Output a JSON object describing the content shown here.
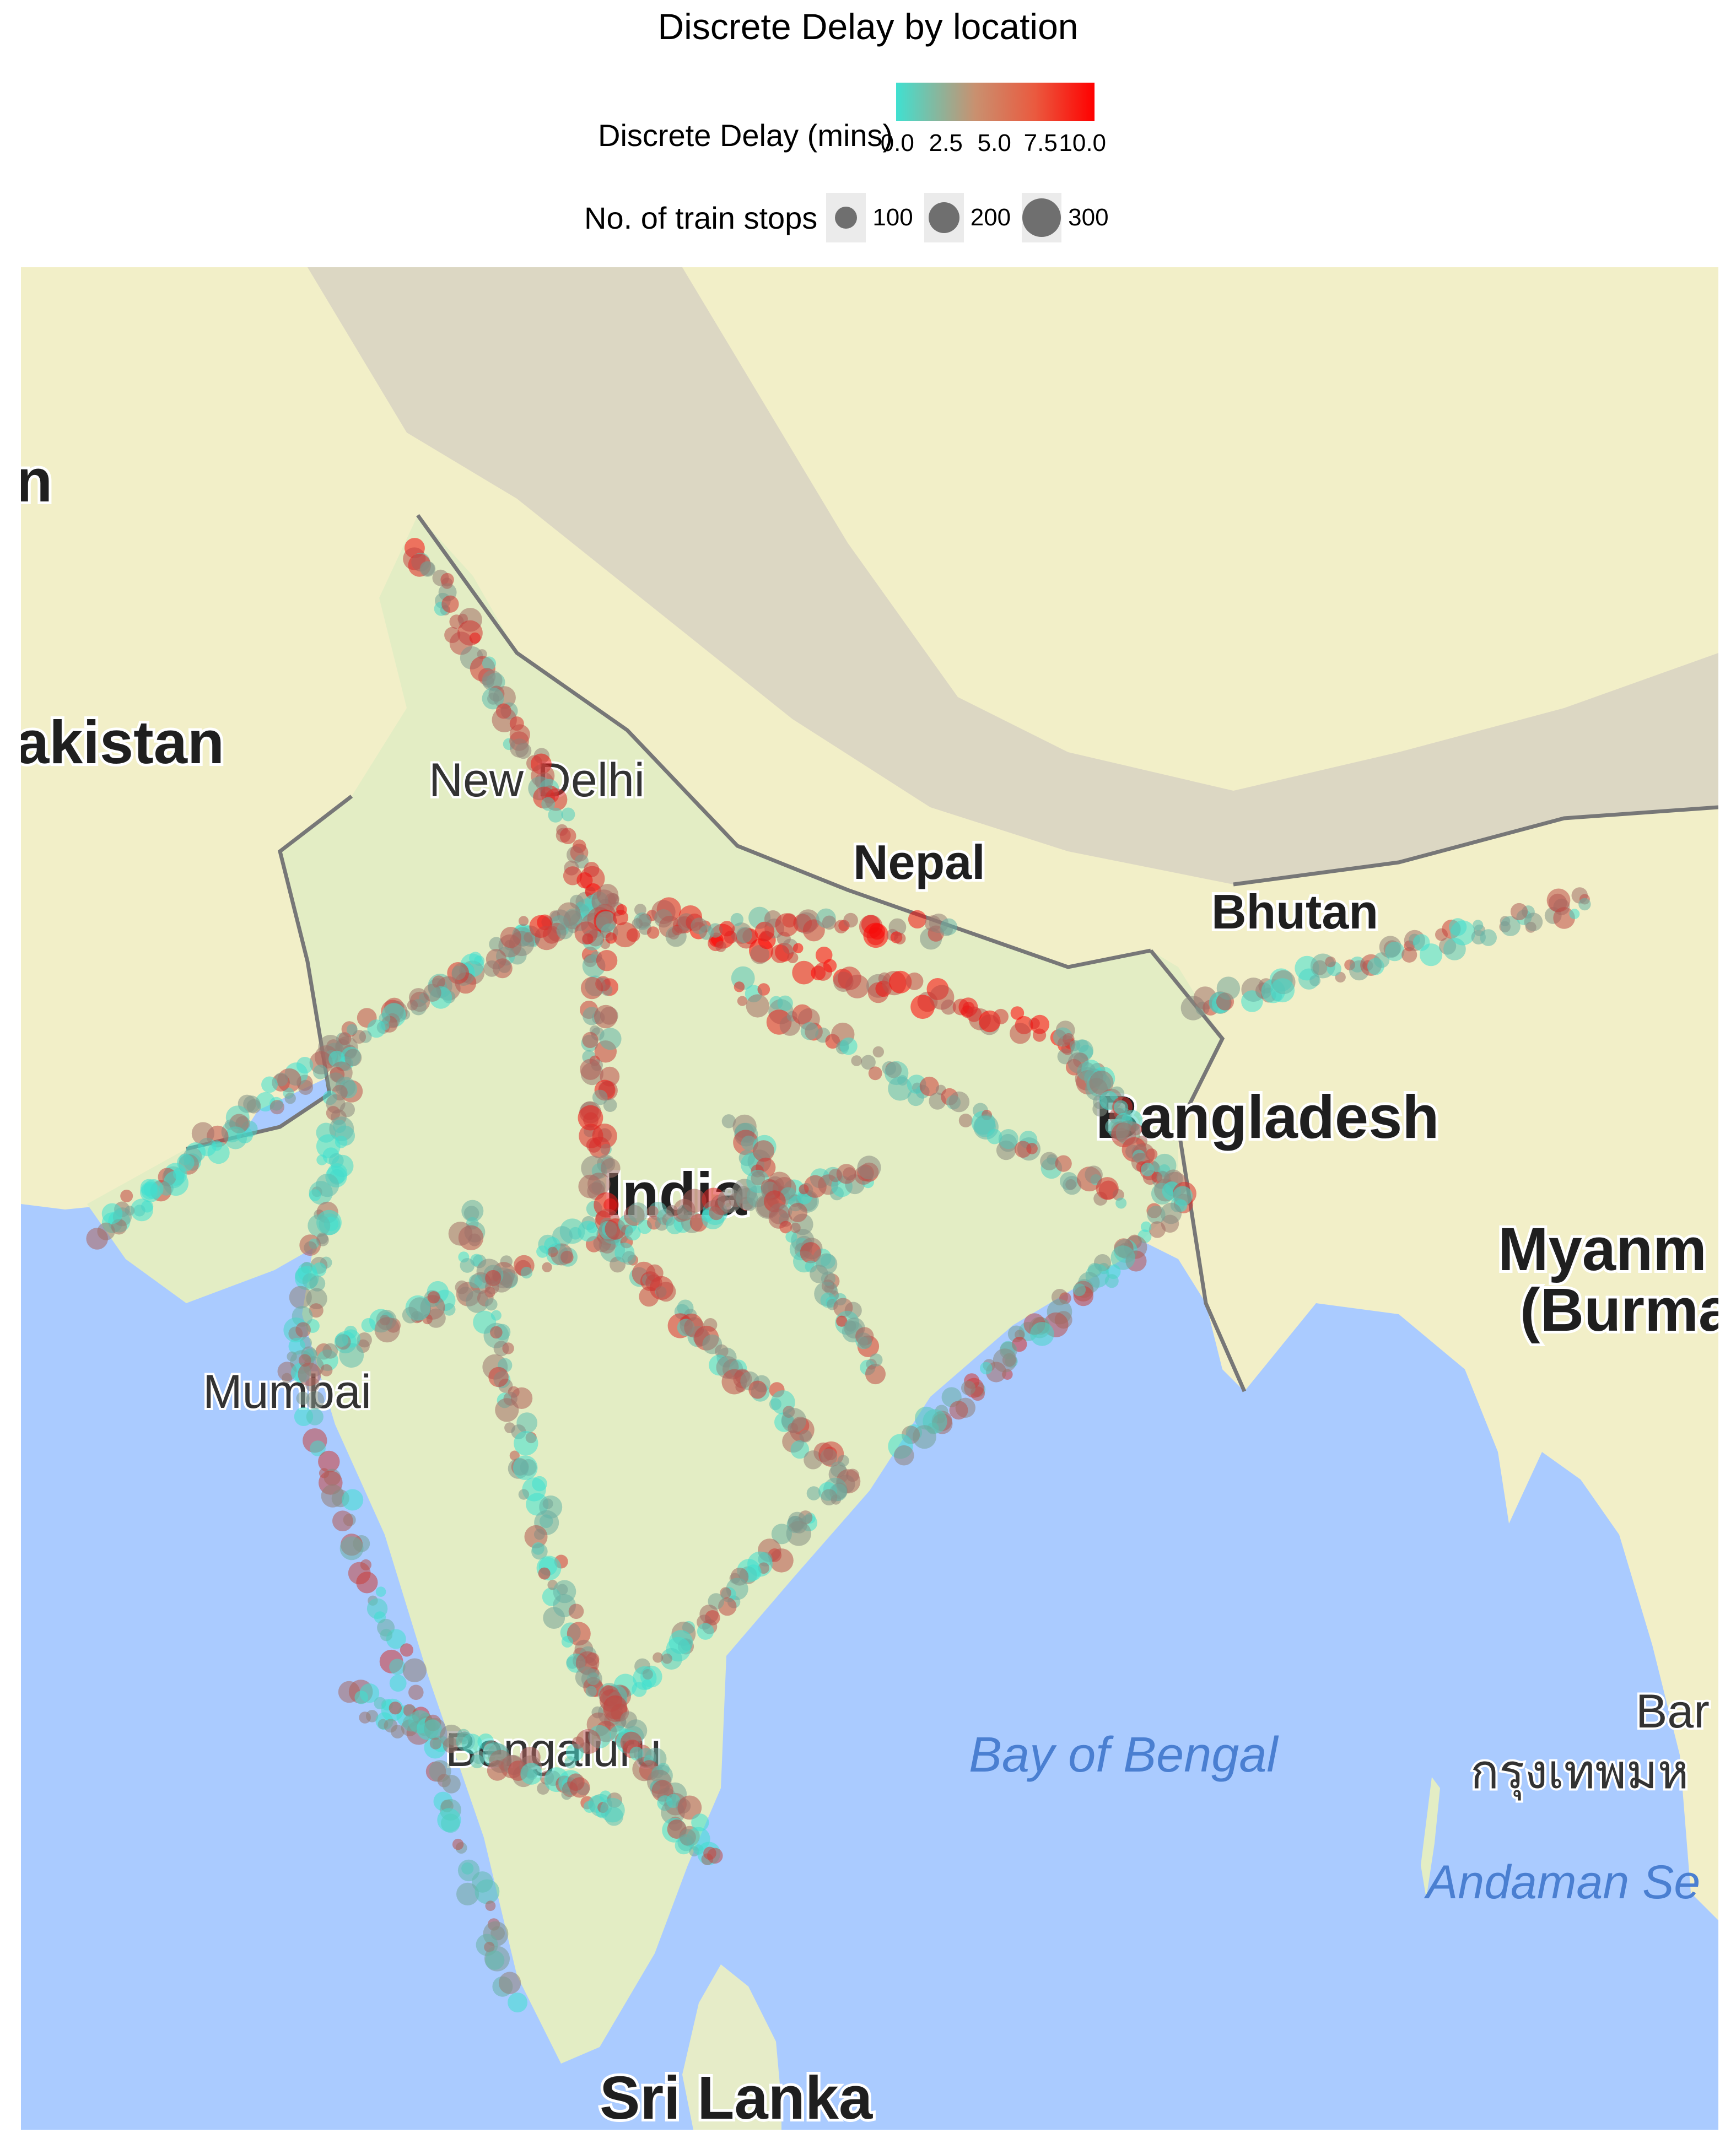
{
  "title": "Discrete Delay by location",
  "legend": {
    "color_title": "Discrete Delay (mins)",
    "color_ticks": [
      "0.0",
      "2.5",
      "5.0",
      "7.5",
      "10.0"
    ],
    "color_low": "#40E0D0",
    "color_high": "#FF0000",
    "size_title": "No. of train stops",
    "size_labels": [
      "100",
      "200",
      "300"
    ]
  },
  "map": {
    "labels": {
      "pakistan": "akistan",
      "pakistan_edge": "n",
      "new_delhi": "New Delhi",
      "nepal": "Nepal",
      "bhutan": "Bhutan",
      "bangladesh": "Bangladesh",
      "india": "India",
      "myanmar_1": "Myanm",
      "myanmar_2": "(Burma",
      "mumbai": "Mumbai",
      "bengaluru": "Bengaluru",
      "bay_of_bengal": "Bay of Bengal",
      "bangkok": "Bar",
      "bangkok_thai": "กรุงเทพมห",
      "andaman_sea": "Andaman Se",
      "sri_lanka": "Sri Lanka"
    },
    "colors": {
      "sea": "#aacbff",
      "land": "#f2efc8",
      "india_land": "#e3edc4",
      "himalaya": "#d9d4c2"
    }
  },
  "chart_data": {
    "type": "scatter",
    "title": "Discrete Delay by location",
    "color_variable": "Discrete Delay (mins)",
    "color_range": [
      0,
      10
    ],
    "size_variable": "No. of train stops",
    "size_breaks": [
      100,
      200,
      300
    ],
    "note_points": "Thousands of station points along the Indian rail network; high delays cluster across the Indo-Gangetic plain (Delhi to Bihar/West Bengal)."
  }
}
